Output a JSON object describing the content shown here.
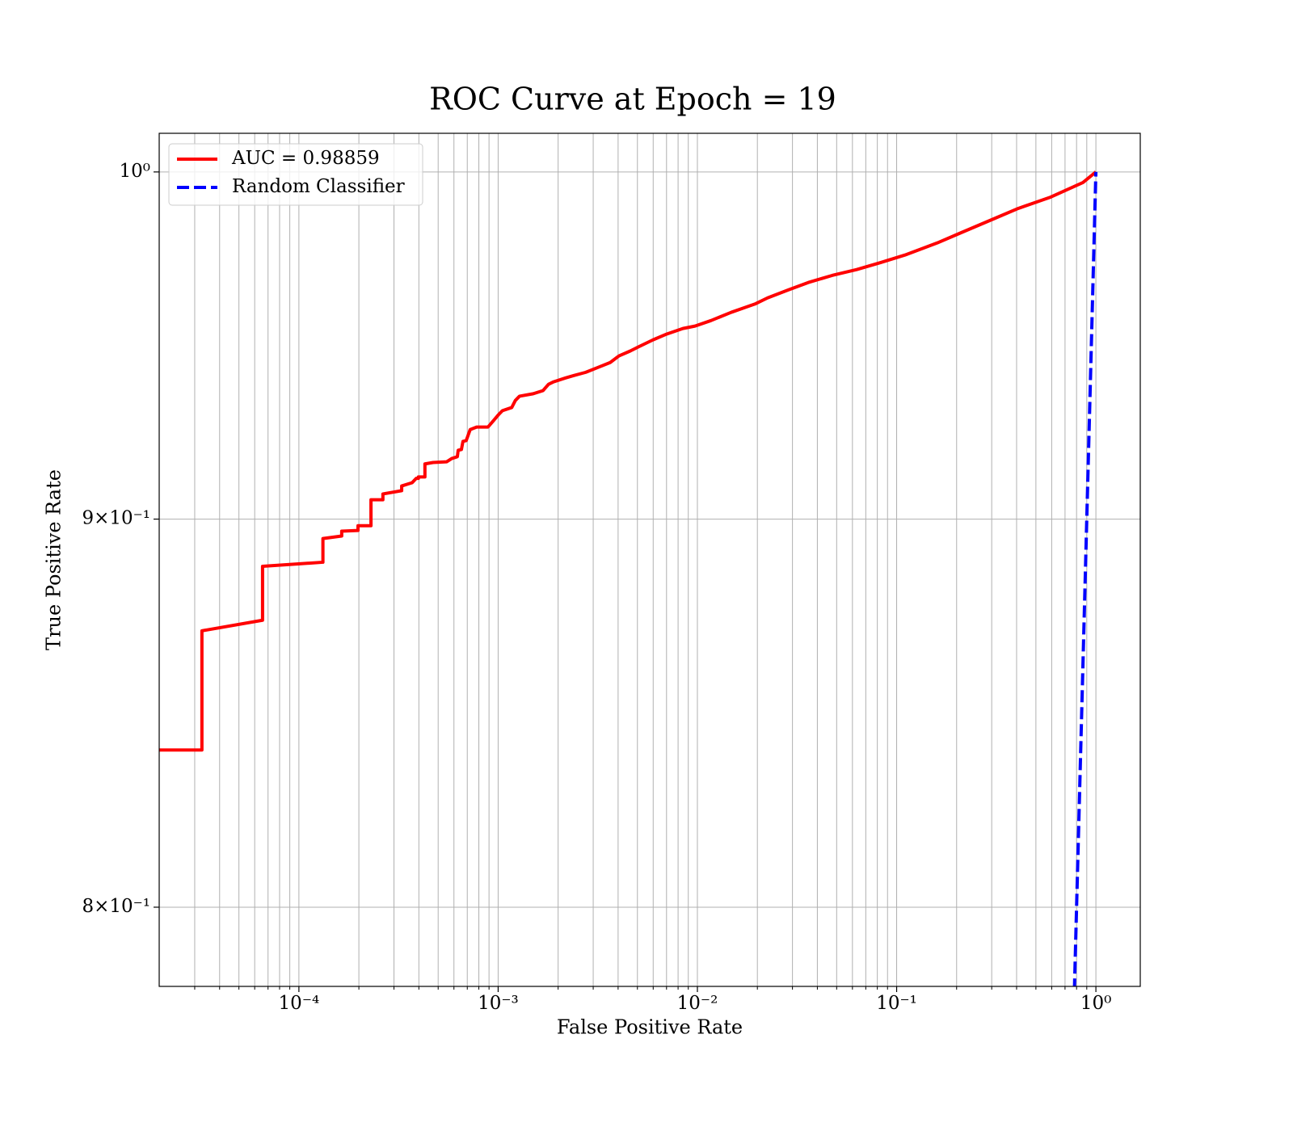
{
  "chart_data": {
    "type": "line",
    "title": "ROC Curve at Epoch = 19",
    "xlabel": "False Positive Rate",
    "ylabel": "True Positive Rate",
    "xscale": "log",
    "yscale": "log",
    "grid": true,
    "legend_loc": "upper left",
    "xlim": [
      1.99e-05,
      1.67
    ],
    "ylim": [
      0.781,
      1.0118
    ],
    "xticks": [
      {
        "value": 0.0001,
        "label": "10⁻⁴"
      },
      {
        "value": 0.001,
        "label": "10⁻³"
      },
      {
        "value": 0.01,
        "label": "10⁻²"
      },
      {
        "value": 0.1,
        "label": "10⁻¹"
      },
      {
        "value": 1,
        "label": "10⁰"
      }
    ],
    "xminorticks": [
      3e-05,
      4e-05,
      5e-05,
      6e-05,
      7e-05,
      8e-05,
      9e-05,
      0.0002,
      0.0003,
      0.0004,
      0.0005,
      0.0006,
      0.0007,
      0.0008,
      0.0009,
      0.002,
      0.003,
      0.004,
      0.005,
      0.006,
      0.007,
      0.008,
      0.009,
      0.02,
      0.03,
      0.04,
      0.05,
      0.06,
      0.07,
      0.08,
      0.09,
      0.2,
      0.3,
      0.4,
      0.5,
      0.6,
      0.7,
      0.8,
      0.9
    ],
    "yticks": [
      {
        "value": 0.8,
        "label": "8×10⁻¹"
      },
      {
        "value": 0.9,
        "label": "9×10⁻¹"
      },
      {
        "value": 1,
        "label": "10⁰"
      }
    ],
    "series": [
      {
        "name": "AUC = 0.98859",
        "color": "#ff0000",
        "linestyle": "solid",
        "x": [
          1.99e-05,
          3.26e-05,
          3.26e-05,
          6.57e-05,
          6.57e-05,
          0.000132,
          0.000132,
          0.000164,
          0.000164,
          0.000198,
          0.000198,
          0.00023,
          0.00023,
          0.000264,
          0.000264,
          0.000328,
          0.000328,
          0.00037,
          0.000388,
          0.000398,
          0.000398,
          0.000429,
          0.000429,
          0.000471,
          0.000552,
          0.000585,
          0.000624,
          0.00063,
          0.000654,
          0.000666,
          0.000691,
          0.000724,
          0.00078,
          0.000889,
          0.000941,
          0.001005,
          0.00105,
          0.00117,
          0.00122,
          0.00128,
          0.0015,
          0.00168,
          0.00179,
          0.0019,
          0.00218,
          0.0024,
          0.00275,
          0.00317,
          0.00365,
          0.00404,
          0.0046,
          0.00506,
          0.00598,
          0.00702,
          0.00846,
          0.00973,
          0.0117,
          0.0148,
          0.0196,
          0.0225,
          0.0285,
          0.036,
          0.0476,
          0.063,
          0.0833,
          0.11,
          0.16,
          0.212,
          0.308,
          0.408,
          0.593,
          0.861,
          1.0
        ],
        "values": [
          0.8391,
          0.8391,
          0.87,
          0.8728,
          0.8872,
          0.8883,
          0.8947,
          0.8954,
          0.8967,
          0.8969,
          0.8982,
          0.8982,
          0.9053,
          0.9053,
          0.9069,
          0.9078,
          0.9091,
          0.91,
          0.9112,
          0.9112,
          0.9116,
          0.9116,
          0.9152,
          0.9156,
          0.9158,
          0.9167,
          0.9172,
          0.919,
          0.9192,
          0.9215,
          0.9217,
          0.9248,
          0.9255,
          0.9255,
          0.9271,
          0.929,
          0.9301,
          0.931,
          0.933,
          0.9342,
          0.9349,
          0.9358,
          0.9376,
          0.9383,
          0.9394,
          0.9401,
          0.941,
          0.9424,
          0.9438,
          0.9457,
          0.9471,
          0.9483,
          0.9503,
          0.952,
          0.9536,
          0.9543,
          0.9559,
          0.9583,
          0.9608,
          0.9625,
          0.9648,
          0.967,
          0.9691,
          0.9708,
          0.9729,
          0.9751,
          0.9787,
          0.9818,
          0.9859,
          0.989,
          0.9924,
          0.9968,
          1.0
        ]
      },
      {
        "name": "Random Classifier",
        "color": "#0000ff",
        "linestyle": "dashed",
        "x": [
          0.78,
          1.0
        ],
        "values": [
          0.78,
          1.0
        ]
      }
    ]
  }
}
